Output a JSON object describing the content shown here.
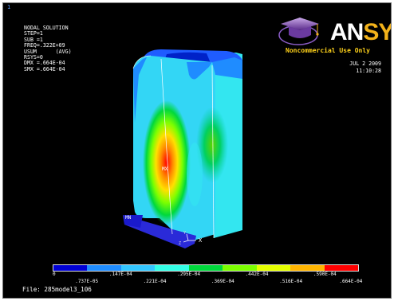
{
  "window_number": "1",
  "info_lines": [
    "NODAL SOLUTION",
    "",
    "STEP=1",
    "SUB =1",
    "FREQ=.322E+09",
    "USUM      (AVG)",
    "RSYS=0",
    "DMX =.664E-04",
    "SMX =.664E-04"
  ],
  "logo": {
    "an": "AN",
    "sys": "SYS",
    "reg": "®",
    "icon": "graduation-cap-icon"
  },
  "noncommercial": "Noncommercial Use Only",
  "date": "JUL  2 2009",
  "time": "11:10:28",
  "markers": {
    "mx": "MX",
    "mn": "MN",
    "axis_x": "X",
    "axis_y": "Y",
    "axis_z": "Z"
  },
  "legend": {
    "colors": [
      "#0000d4",
      "#1f8cff",
      "#33c6ff",
      "#33ffe6",
      "#00d83c",
      "#7cff00",
      "#e4ff00",
      "#ffb400",
      "#ff0000"
    ],
    "top_labels": [
      "0",
      ".147E-04",
      ".295E-04",
      ".442E-04",
      ".590E-04"
    ],
    "bottom_labels": [
      ".737E-05",
      ".221E-04",
      ".369E-04",
      ".516E-04",
      ".664E-04"
    ]
  },
  "file_label": "File: 285model3_106"
}
